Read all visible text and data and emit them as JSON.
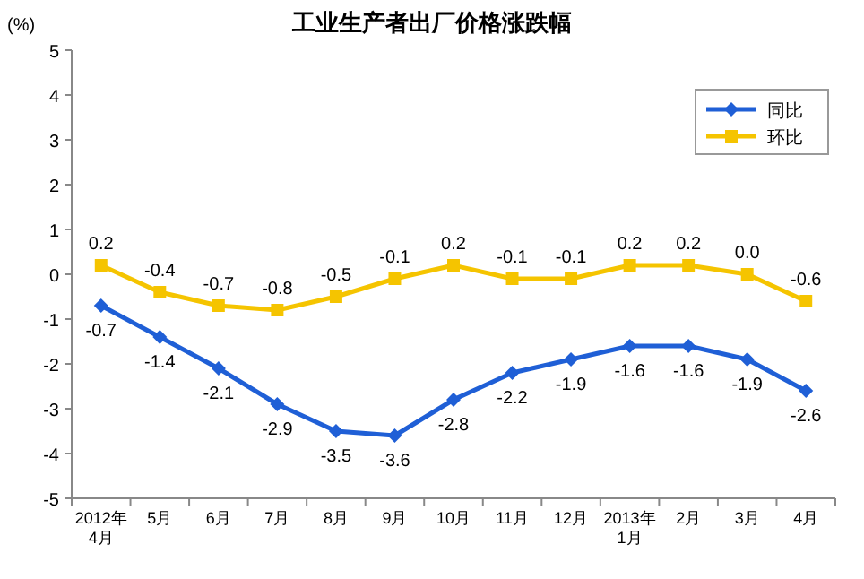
{
  "chart_data": {
    "type": "line",
    "title": "工业生产者出厂价格涨跌幅",
    "ylabel": "(%)",
    "categories": [
      "2012年\n4月",
      "5月",
      "6月",
      "7月",
      "8月",
      "9月",
      "10月",
      "11月",
      "12月",
      "2013年\n1月",
      "2月",
      "3月",
      "4月"
    ],
    "series": [
      {
        "name": "同比",
        "color": "#1f5fd6",
        "marker": "diamond",
        "values": [
          -0.7,
          -1.4,
          -2.1,
          -2.9,
          -3.5,
          -3.6,
          -2.8,
          -2.2,
          -1.9,
          -1.6,
          -1.6,
          -1.9,
          -2.6
        ],
        "value_labels": [
          "-0.7",
          "-1.4",
          "-2.1",
          "-2.9",
          "-3.5",
          "-3.6",
          "-2.8",
          "-2.2",
          "-1.9",
          "-1.6",
          "-1.6",
          "-1.9",
          "-2.6"
        ]
      },
      {
        "name": "环比",
        "color": "#f5c400",
        "marker": "square",
        "values": [
          0.2,
          -0.4,
          -0.7,
          -0.8,
          -0.5,
          -0.1,
          0.2,
          -0.1,
          -0.1,
          0.2,
          0.2,
          0.0,
          -0.6
        ],
        "value_labels": [
          "0.2",
          "-0.4",
          "-0.7",
          "-0.8",
          "-0.5",
          "-0.1",
          "0.2",
          "-0.1",
          "-0.1",
          "0.2",
          "0.2",
          "0.0",
          "-0.6"
        ]
      }
    ],
    "ylim": [
      -5,
      5
    ],
    "yticks": [
      -5,
      -4,
      -3,
      -2,
      -1,
      0,
      1,
      2,
      3,
      4,
      5
    ],
    "legend": "top right"
  }
}
